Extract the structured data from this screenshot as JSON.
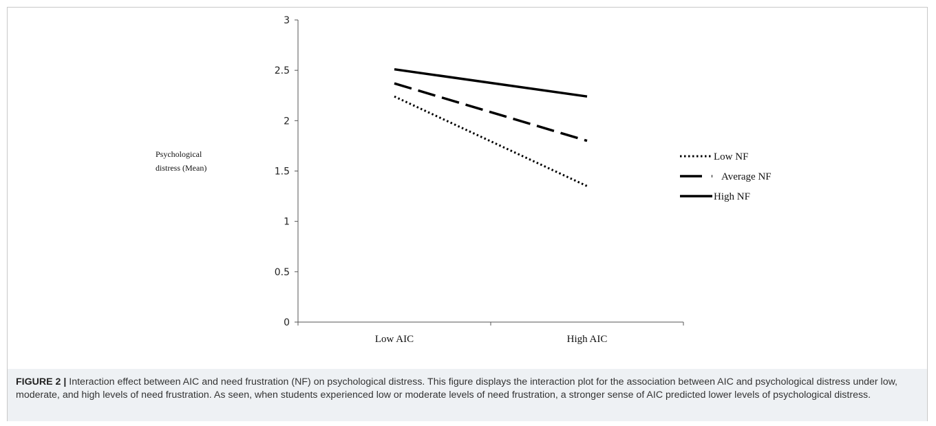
{
  "chart_data": {
    "type": "line",
    "categories": [
      "Low AIC",
      "High AIC"
    ],
    "series": [
      {
        "name": "Low NF",
        "values": [
          2.24,
          1.35
        ],
        "style": "dotted",
        "color": "#000000"
      },
      {
        "name": "Average NF",
        "values": [
          2.37,
          1.8
        ],
        "style": "dashed",
        "color": "#000000"
      },
      {
        "name": "High NF",
        "values": [
          2.51,
          2.24
        ],
        "style": "solid",
        "color": "#000000"
      }
    ],
    "ylabel_lines": [
      "Psychological",
      "distress (Mean)"
    ],
    "xlabel": "",
    "ylim": [
      0,
      3
    ],
    "yticks": [
      0,
      0.5,
      1,
      1.5,
      2,
      2.5,
      3
    ],
    "grid": false,
    "legend_position": "right"
  },
  "caption": {
    "label": "FIGURE 2 |",
    "text": " Interaction effect between AIC and need frustration (NF) on psychological distress. This figure displays the interaction plot for the association between AIC and psychological distress under low, moderate, and high levels of need frustration. As seen, when students experienced low or moderate levels of need frustration, a stronger sense of AIC predicted lower levels of psychological distress."
  }
}
